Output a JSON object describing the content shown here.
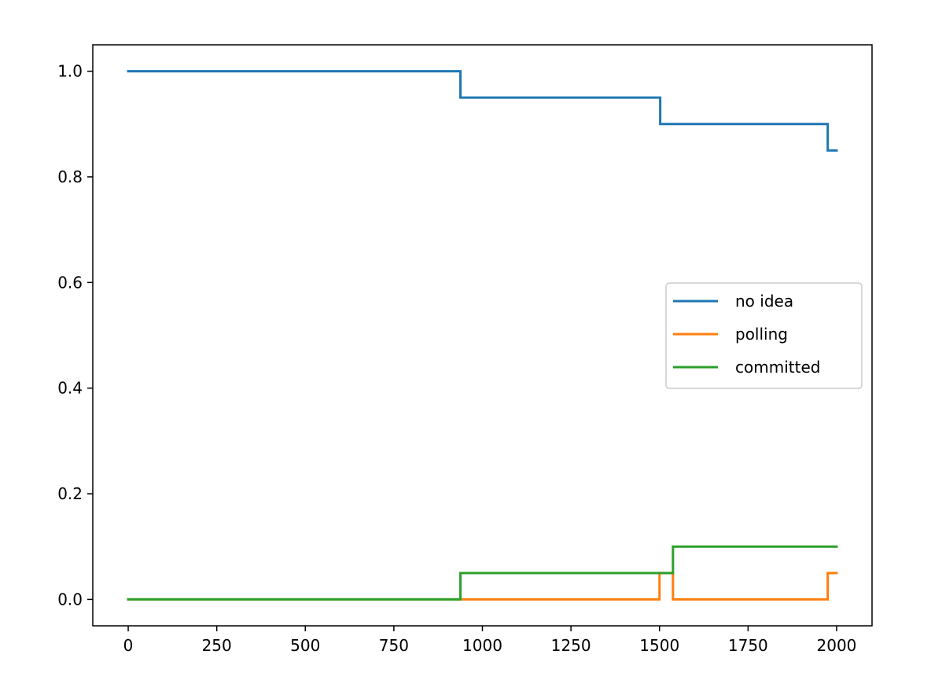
{
  "chart_data": {
    "type": "line",
    "title": "",
    "xlabel": "",
    "ylabel": "",
    "xlim": [
      -100,
      2100
    ],
    "ylim": [
      -0.05,
      1.05
    ],
    "x_ticks": [
      0,
      250,
      500,
      750,
      1000,
      1250,
      1500,
      1750,
      2000
    ],
    "x_tick_labels": [
      "0",
      "250",
      "500",
      "750",
      "1000",
      "1250",
      "1500",
      "1750",
      "2000"
    ],
    "y_ticks": [
      0.0,
      0.2,
      0.4,
      0.6,
      0.8,
      1.0
    ],
    "y_tick_labels": [
      "0.0",
      "0.2",
      "0.4",
      "0.6",
      "0.8",
      "1.0"
    ],
    "grid": false,
    "legend_position": "center-right",
    "series": [
      {
        "name": "no idea",
        "color": "#1f77b4",
        "x": [
          0,
          938,
          938,
          1502,
          1502,
          1975,
          1975,
          2000
        ],
        "y": [
          1.0,
          1.0,
          0.95,
          0.95,
          0.9,
          0.9,
          0.85,
          0.85
        ]
      },
      {
        "name": "polling",
        "color": "#ff7f0e",
        "x": [
          0,
          1500,
          1500,
          1538,
          1538,
          1975,
          1975,
          2000
        ],
        "y": [
          0.0,
          0.0,
          0.05,
          0.05,
          0.0,
          0.0,
          0.05,
          0.05
        ]
      },
      {
        "name": "committed",
        "color": "#2ca02c",
        "x": [
          0,
          938,
          938,
          1538,
          1538,
          2000
        ],
        "y": [
          0.0,
          0.0,
          0.05,
          0.05,
          0.1,
          0.1
        ]
      }
    ]
  }
}
